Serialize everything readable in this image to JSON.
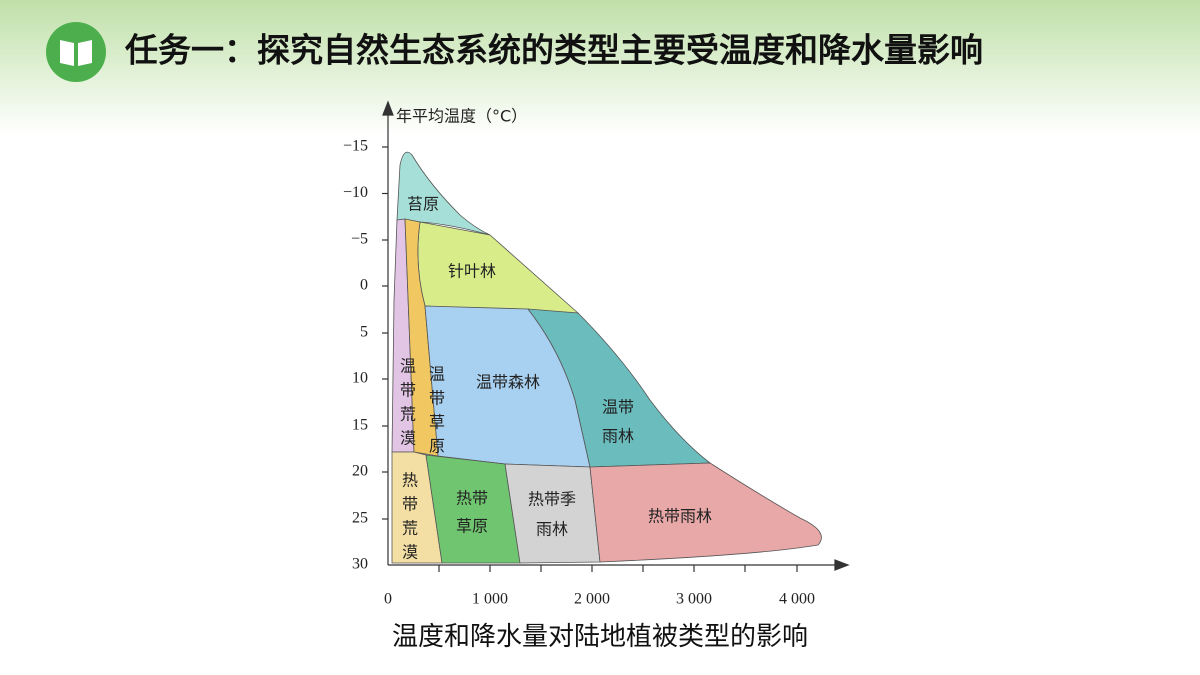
{
  "header": {
    "title": "任务一：探究自然生态系统的类型主要受温度和降水量影响"
  },
  "diagram": {
    "y_axis_label": "年平均温度（°C）",
    "y_ticks": [
      "−15",
      "−10",
      "−5",
      "0",
      "5",
      "10",
      "15",
      "20",
      "25",
      "30"
    ],
    "x_ticks": [
      "0",
      "1 000",
      "2 000",
      "3 000",
      "4 000"
    ],
    "regions": [
      {
        "lines": [
          "苔原"
        ]
      },
      {
        "lines": [
          "针叶林"
        ]
      },
      {
        "lines": [
          "温带森林"
        ]
      },
      {
        "lines": [
          "温带",
          "雨林"
        ]
      },
      {
        "lines": [
          "温",
          "带",
          "荒",
          "漠"
        ]
      },
      {
        "lines": [
          "温",
          "带",
          "草",
          "原"
        ]
      },
      {
        "lines": [
          "热",
          "带",
          "荒",
          "漠"
        ]
      },
      {
        "lines": [
          "热带",
          "草原"
        ]
      },
      {
        "lines": [
          "热带季",
          "雨林"
        ]
      },
      {
        "lines": [
          "热带雨林"
        ]
      }
    ],
    "caption": "温度和降水量对陆地植被类型的影响"
  }
}
